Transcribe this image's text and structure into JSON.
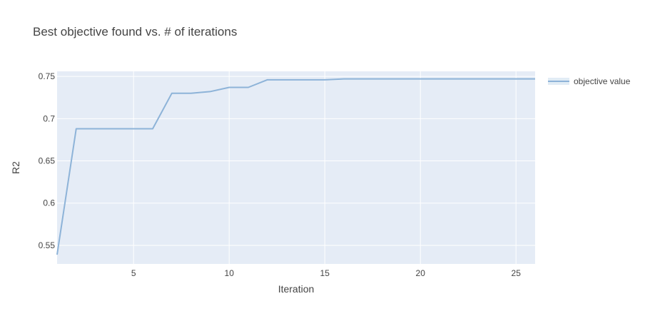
{
  "chart_data": {
    "type": "line",
    "title": "Best objective found vs. # of iterations",
    "xlabel": "Iteration",
    "ylabel": "R2",
    "xlim": [
      1,
      26
    ],
    "ylim": [
      0.528,
      0.756
    ],
    "xticks": [
      5,
      10,
      15,
      20,
      25
    ],
    "xtick_labels": [
      "5",
      "10",
      "15",
      "20",
      "25"
    ],
    "yticks": [
      0.55,
      0.6,
      0.65,
      0.7,
      0.75
    ],
    "ytick_labels": [
      "0.55",
      "0.6",
      "0.65",
      "0.7",
      "0.75"
    ],
    "grid": true,
    "legend_position": "top-right",
    "plot_background": "#e5ecf6",
    "series": [
      {
        "name": "objective value",
        "color": "#8db3d8",
        "x": [
          1,
          2,
          3,
          4,
          5,
          6,
          7,
          8,
          9,
          10,
          11,
          12,
          13,
          14,
          15,
          16,
          17,
          18,
          19,
          20,
          21,
          22,
          23,
          24,
          25,
          26
        ],
        "y": [
          0.539,
          0.688,
          0.688,
          0.688,
          0.688,
          0.688,
          0.73,
          0.73,
          0.732,
          0.737,
          0.737,
          0.746,
          0.746,
          0.746,
          0.746,
          0.747,
          0.747,
          0.747,
          0.747,
          0.747,
          0.747,
          0.747,
          0.747,
          0.747,
          0.747,
          0.747
        ]
      }
    ]
  }
}
